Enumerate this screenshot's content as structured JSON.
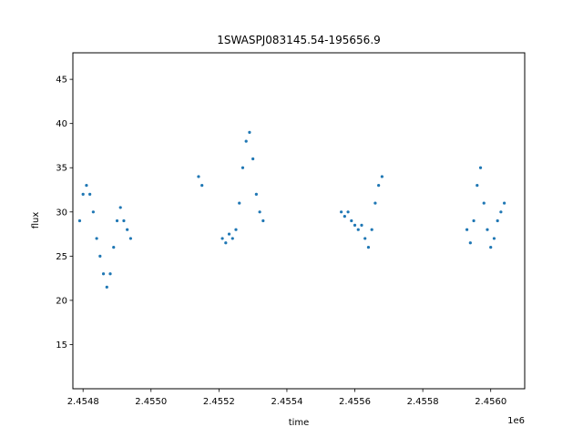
{
  "chart_data": {
    "type": "scatter",
    "title": "1SWASPJ083145.54-195656.9",
    "xlabel": "time",
    "ylabel": "flux",
    "x_offset_label": "1e6",
    "xlim": [
      2454770,
      2456100
    ],
    "ylim": [
      10,
      48
    ],
    "x_ticks": [
      {
        "value": 2454800,
        "label": "2.4548"
      },
      {
        "value": 2455000,
        "label": "2.4550"
      },
      {
        "value": 2455200,
        "label": "2.4552"
      },
      {
        "value": 2455400,
        "label": "2.4554"
      },
      {
        "value": 2455600,
        "label": "2.4556"
      },
      {
        "value": 2455800,
        "label": "2.4558"
      },
      {
        "value": 2456000,
        "label": "2.4560"
      }
    ],
    "y_ticks": [
      {
        "value": 15,
        "label": "15"
      },
      {
        "value": 20,
        "label": "20"
      },
      {
        "value": 25,
        "label": "25"
      },
      {
        "value": 30,
        "label": "30"
      },
      {
        "value": 35,
        "label": "35"
      },
      {
        "value": 40,
        "label": "40"
      },
      {
        "value": 45,
        "label": "45"
      }
    ],
    "grid": false,
    "marker_color": "#1f77b4",
    "series": [
      {
        "x": [
          2454790,
          2454800,
          2454810,
          2454820,
          2454830,
          2454840,
          2454850,
          2454860,
          2454870,
          2454880,
          2454890,
          2454900,
          2454910,
          2454920,
          2454930,
          2454940,
          2455140,
          2455150,
          2455210,
          2455220,
          2455230,
          2455240,
          2455250,
          2455260,
          2455270,
          2455280,
          2455290,
          2455300,
          2455310,
          2455320,
          2455330,
          2455560,
          2455570,
          2455580,
          2455590,
          2455600,
          2455610,
          2455620,
          2455630,
          2455640,
          2455650,
          2455660,
          2455670,
          2455680,
          2455930,
          2455940,
          2455950,
          2455960,
          2455970,
          2455980,
          2455990,
          2456000,
          2456010,
          2456020,
          2456030,
          2456040
        ],
        "y": [
          29,
          32,
          33,
          32,
          30,
          27,
          25,
          23,
          21.5,
          23,
          26,
          29,
          30.5,
          29,
          28,
          27,
          34,
          33,
          27,
          26.5,
          27.5,
          27,
          28,
          31,
          35,
          38,
          39,
          36,
          32,
          30,
          29,
          30,
          29.5,
          30,
          29,
          28.5,
          28,
          28.5,
          27,
          26,
          28,
          31,
          33,
          34,
          28,
          26.5,
          29,
          33,
          35,
          31,
          28,
          26,
          27,
          29,
          30,
          31
        ]
      }
    ]
  }
}
